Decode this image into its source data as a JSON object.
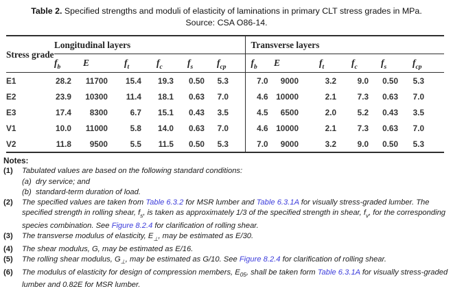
{
  "title": {
    "prefix": "Table 2.",
    "text": " Specified strengths and moduli of elasticity of laminations in primary CLT stress grades in MPa.",
    "source": "Source: CSA O86-14."
  },
  "table": {
    "stress_grade_header": "Stress grade",
    "groups": [
      {
        "label": "Longitudinal layers"
      },
      {
        "label": "Transverse layers"
      }
    ],
    "columns": [
      {
        "base": "f",
        "sub": "b"
      },
      {
        "base": "E",
        "sub": ""
      },
      {
        "base": "f",
        "sub": "t"
      },
      {
        "base": "f",
        "sub": "c"
      },
      {
        "base": "f",
        "sub": "s"
      },
      {
        "base": "f",
        "sub": "cp"
      }
    ],
    "rows": [
      {
        "grade": "E1",
        "longitudinal": [
          "28.2",
          "11700",
          "15.4",
          "19.3",
          "0.50",
          "5.3"
        ],
        "transverse": [
          "7.0",
          "9000",
          "3.2",
          "9.0",
          "0.50",
          "5.3"
        ]
      },
      {
        "grade": "E2",
        "longitudinal": [
          "23.9",
          "10300",
          "11.4",
          "18.1",
          "0.63",
          "7.0"
        ],
        "transverse": [
          "4.6",
          "10000",
          "2.1",
          "7.3",
          "0.63",
          "7.0"
        ]
      },
      {
        "grade": "E3",
        "longitudinal": [
          "17.4",
          "8300",
          "6.7",
          "15.1",
          "0.43",
          "3.5"
        ],
        "transverse": [
          "4.5",
          "6500",
          "2.0",
          "5.2",
          "0.43",
          "3.5"
        ]
      },
      {
        "grade": "V1",
        "longitudinal": [
          "10.0",
          "11000",
          "5.8",
          "14.0",
          "0.63",
          "7.0"
        ],
        "transverse": [
          "4.6",
          "10000",
          "2.1",
          "7.3",
          "0.63",
          "7.0"
        ]
      },
      {
        "grade": "V2",
        "longitudinal": [
          "11.8",
          "9500",
          "5.5",
          "11.5",
          "0.50",
          "5.3"
        ],
        "transverse": [
          "7.0",
          "9000",
          "3.2",
          "9.0",
          "0.50",
          "5.3"
        ]
      }
    ]
  },
  "notes": {
    "heading": "Notes:",
    "items": [
      {
        "num": "(1)",
        "segments": [
          {
            "t": "Tabulated values are based on the following standard conditions:"
          }
        ],
        "subitems": [
          {
            "num": "(a)",
            "segments": [
              {
                "t": "dry service; and"
              }
            ]
          },
          {
            "num": "(b)",
            "segments": [
              {
                "t": "standard-term duration of load."
              }
            ]
          }
        ]
      },
      {
        "num": "(2)",
        "segments": [
          {
            "t": "The specified values are taken from "
          },
          {
            "t": "Table 6.3.2",
            "link": true
          },
          {
            "t": " for MSR lumber and "
          },
          {
            "t": "Table 6.3.1A",
            "link": true
          },
          {
            "t": " for visually stress-graded lumber. The specified strength in rolling shear, f"
          },
          {
            "t": "s",
            "sub": true
          },
          {
            "t": ", is taken as approximately 1/3 of the specified strength in shear, f"
          },
          {
            "t": "v",
            "sub": true
          },
          {
            "t": ", for the corresponding species combination. See "
          },
          {
            "t": "Figure 8.2.4",
            "link": true
          },
          {
            "t": " for clarification of rolling shear."
          }
        ]
      },
      {
        "num": "(3)",
        "segments": [
          {
            "t": "The transverse modulus of elasticity, E"
          },
          {
            "t": "⊥",
            "sub": true
          },
          {
            "t": ", may be estimated as E/30."
          }
        ]
      },
      {
        "num": "(4)",
        "segments": [
          {
            "t": "The shear modulus, G, may be estimated as E/16."
          }
        ]
      },
      {
        "num": "(5)",
        "segments": [
          {
            "t": "The rolling shear modulus, G"
          },
          {
            "t": "⊥",
            "sub": true
          },
          {
            "t": ", may be estimated as G/10. See "
          },
          {
            "t": "Figure 8.2.4",
            "link": true
          },
          {
            "t": " for clarification of rolling shear."
          }
        ]
      },
      {
        "num": "(6)",
        "segments": [
          {
            "t": "The modulus of elasticity for design of compression members, E"
          },
          {
            "t": "05",
            "sub": true
          },
          {
            "t": ", shall be taken form "
          },
          {
            "t": "Table 6.3.1A",
            "link": true
          },
          {
            "t": " for visually stress-graded lumber and 0.82E for MSR lumber."
          }
        ]
      }
    ]
  },
  "colors": {
    "link": "#3c3cdb",
    "rule": "#2e2e2e",
    "text": "#1c1c1c"
  }
}
